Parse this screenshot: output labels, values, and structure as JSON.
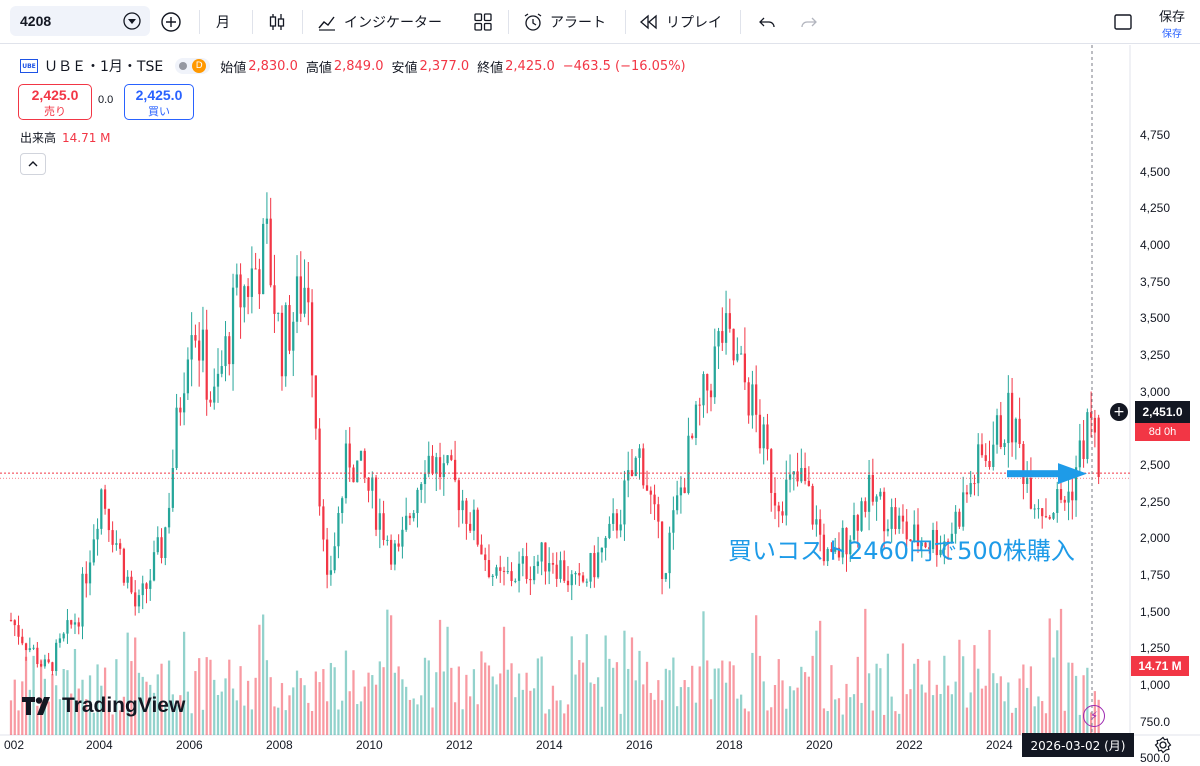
{
  "toolbar": {
    "symbol": "4208",
    "interval": "月",
    "indicators_label": "インジケーター",
    "alert_label": "アラート",
    "replay_label": "リプレイ",
    "save_label": "保存",
    "save_sub_label": "保存"
  },
  "legend": {
    "name": "ＵＢＥ・1月・TSE",
    "d_badge": "D",
    "open_label": "始値",
    "open": "2,830.0",
    "high_label": "高値",
    "high": "2,849.0",
    "low_label": "安値",
    "low": "2,377.0",
    "close_label": "終値",
    "close": "2,425.0",
    "change": "−463.5 (−16.05%)",
    "logo_text": "UBE"
  },
  "trade": {
    "sell_price": "2,425.0",
    "sell_label": "売り",
    "spread": "0.0",
    "buy_price": "2,425.0",
    "buy_label": "買い"
  },
  "volume_legend": {
    "label": "出来高",
    "value": "14.71 M"
  },
  "watermark": "TradingView",
  "annotation": "買いコスト2460円で500株購入",
  "price_tag": "2,451.0",
  "countdown": "8d 0h",
  "volume_tag": "14.71 M",
  "date_tag": "2026-03-02 (月)",
  "colors": {
    "up": "#26a69a",
    "down": "#f23645",
    "arrow": "#1e9be8"
  },
  "chart_data": {
    "type": "candlestick",
    "interval": "monthly",
    "y_ticks": [
      "4,750",
      "4,500",
      "4,250",
      "4,000",
      "3,750",
      "3,500",
      "3,250",
      "3,000",
      "2,750",
      "2,500",
      "2,250",
      "2,000",
      "1,750",
      "1,500",
      "1,250",
      "1,000",
      "750.0",
      "500.0"
    ],
    "x_ticks": [
      "002",
      "2004",
      "2006",
      "2008",
      "2010",
      "2012",
      "2014",
      "2016",
      "2018",
      "2020",
      "2022",
      "2024"
    ],
    "price_keypoints": [
      {
        "t": 2002.0,
        "v": 1450
      },
      {
        "t": 2002.8,
        "v": 1100
      },
      {
        "t": 2003.5,
        "v": 1500
      },
      {
        "t": 2004.0,
        "v": 2350
      },
      {
        "t": 2004.8,
        "v": 1500
      },
      {
        "t": 2005.4,
        "v": 2000
      },
      {
        "t": 2006.0,
        "v": 3600
      },
      {
        "t": 2006.5,
        "v": 2900
      },
      {
        "t": 2007.0,
        "v": 3600
      },
      {
        "t": 2007.7,
        "v": 4000
      },
      {
        "t": 2008.0,
        "v": 3300
      },
      {
        "t": 2008.6,
        "v": 3800
      },
      {
        "t": 2009.0,
        "v": 1600
      },
      {
        "t": 2009.5,
        "v": 2600
      },
      {
        "t": 2010.0,
        "v": 2300
      },
      {
        "t": 2010.6,
        "v": 1850
      },
      {
        "t": 2011.2,
        "v": 2600
      },
      {
        "t": 2012.0,
        "v": 2300
      },
      {
        "t": 2012.8,
        "v": 1700
      },
      {
        "t": 2014.0,
        "v": 1900
      },
      {
        "t": 2014.6,
        "v": 1650
      },
      {
        "t": 2015.3,
        "v": 2000
      },
      {
        "t": 2016.0,
        "v": 2600
      },
      {
        "t": 2016.5,
        "v": 1800
      },
      {
        "t": 2017.0,
        "v": 2500
      },
      {
        "t": 2017.8,
        "v": 3400
      },
      {
        "t": 2018.4,
        "v": 3000
      },
      {
        "t": 2019.0,
        "v": 2300
      },
      {
        "t": 2019.6,
        "v": 2400
      },
      {
        "t": 2020.2,
        "v": 1800
      },
      {
        "t": 2021.0,
        "v": 2300
      },
      {
        "t": 2021.6,
        "v": 2150
      },
      {
        "t": 2022.0,
        "v": 2000
      },
      {
        "t": 2022.8,
        "v": 2000
      },
      {
        "t": 2023.5,
        "v": 2500
      },
      {
        "t": 2024.2,
        "v": 2850
      },
      {
        "t": 2024.6,
        "v": 2400
      },
      {
        "t": 2025.0,
        "v": 2200
      },
      {
        "t": 2025.5,
        "v": 2300
      },
      {
        "t": 2026.0,
        "v": 2850
      },
      {
        "t": 2026.17,
        "v": 2425
      }
    ],
    "last_candle": {
      "date": "2026-03-02",
      "open": 2830.0,
      "high": 2849.0,
      "low": 2377.0,
      "close": 2425.0
    },
    "current_price": 2451.0
  }
}
